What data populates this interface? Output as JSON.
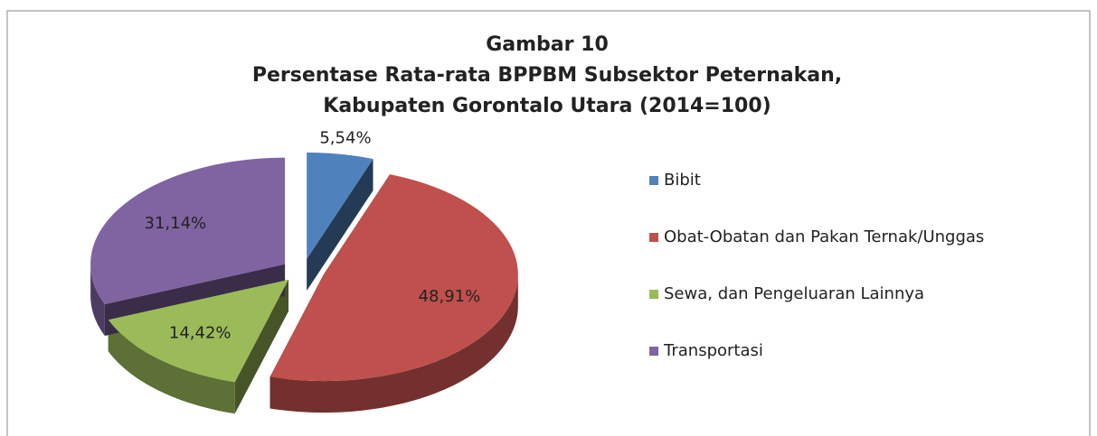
{
  "chart_data": {
    "type": "pie",
    "title": [
      "Gambar 10",
      "Persentase Rata-rata BPPBM  Subsektor Peternakan,",
      "Kabupaten Gorontalo Utara (2014=100)"
    ],
    "categories": [
      "Bibit",
      "Obat-Obatan dan Pakan Ternak/Unggas",
      "Sewa, dan Pengeluaran Lainnya",
      "Transportasi"
    ],
    "values": [
      5.54,
      48.91,
      14.42,
      31.14
    ],
    "value_labels": [
      "5,54%",
      "48,91%",
      "14,42%",
      "31,14%"
    ],
    "colors": [
      "#4f81bd",
      "#c0504d",
      "#9bbb59",
      "#8064a2"
    ],
    "legend": "right"
  }
}
